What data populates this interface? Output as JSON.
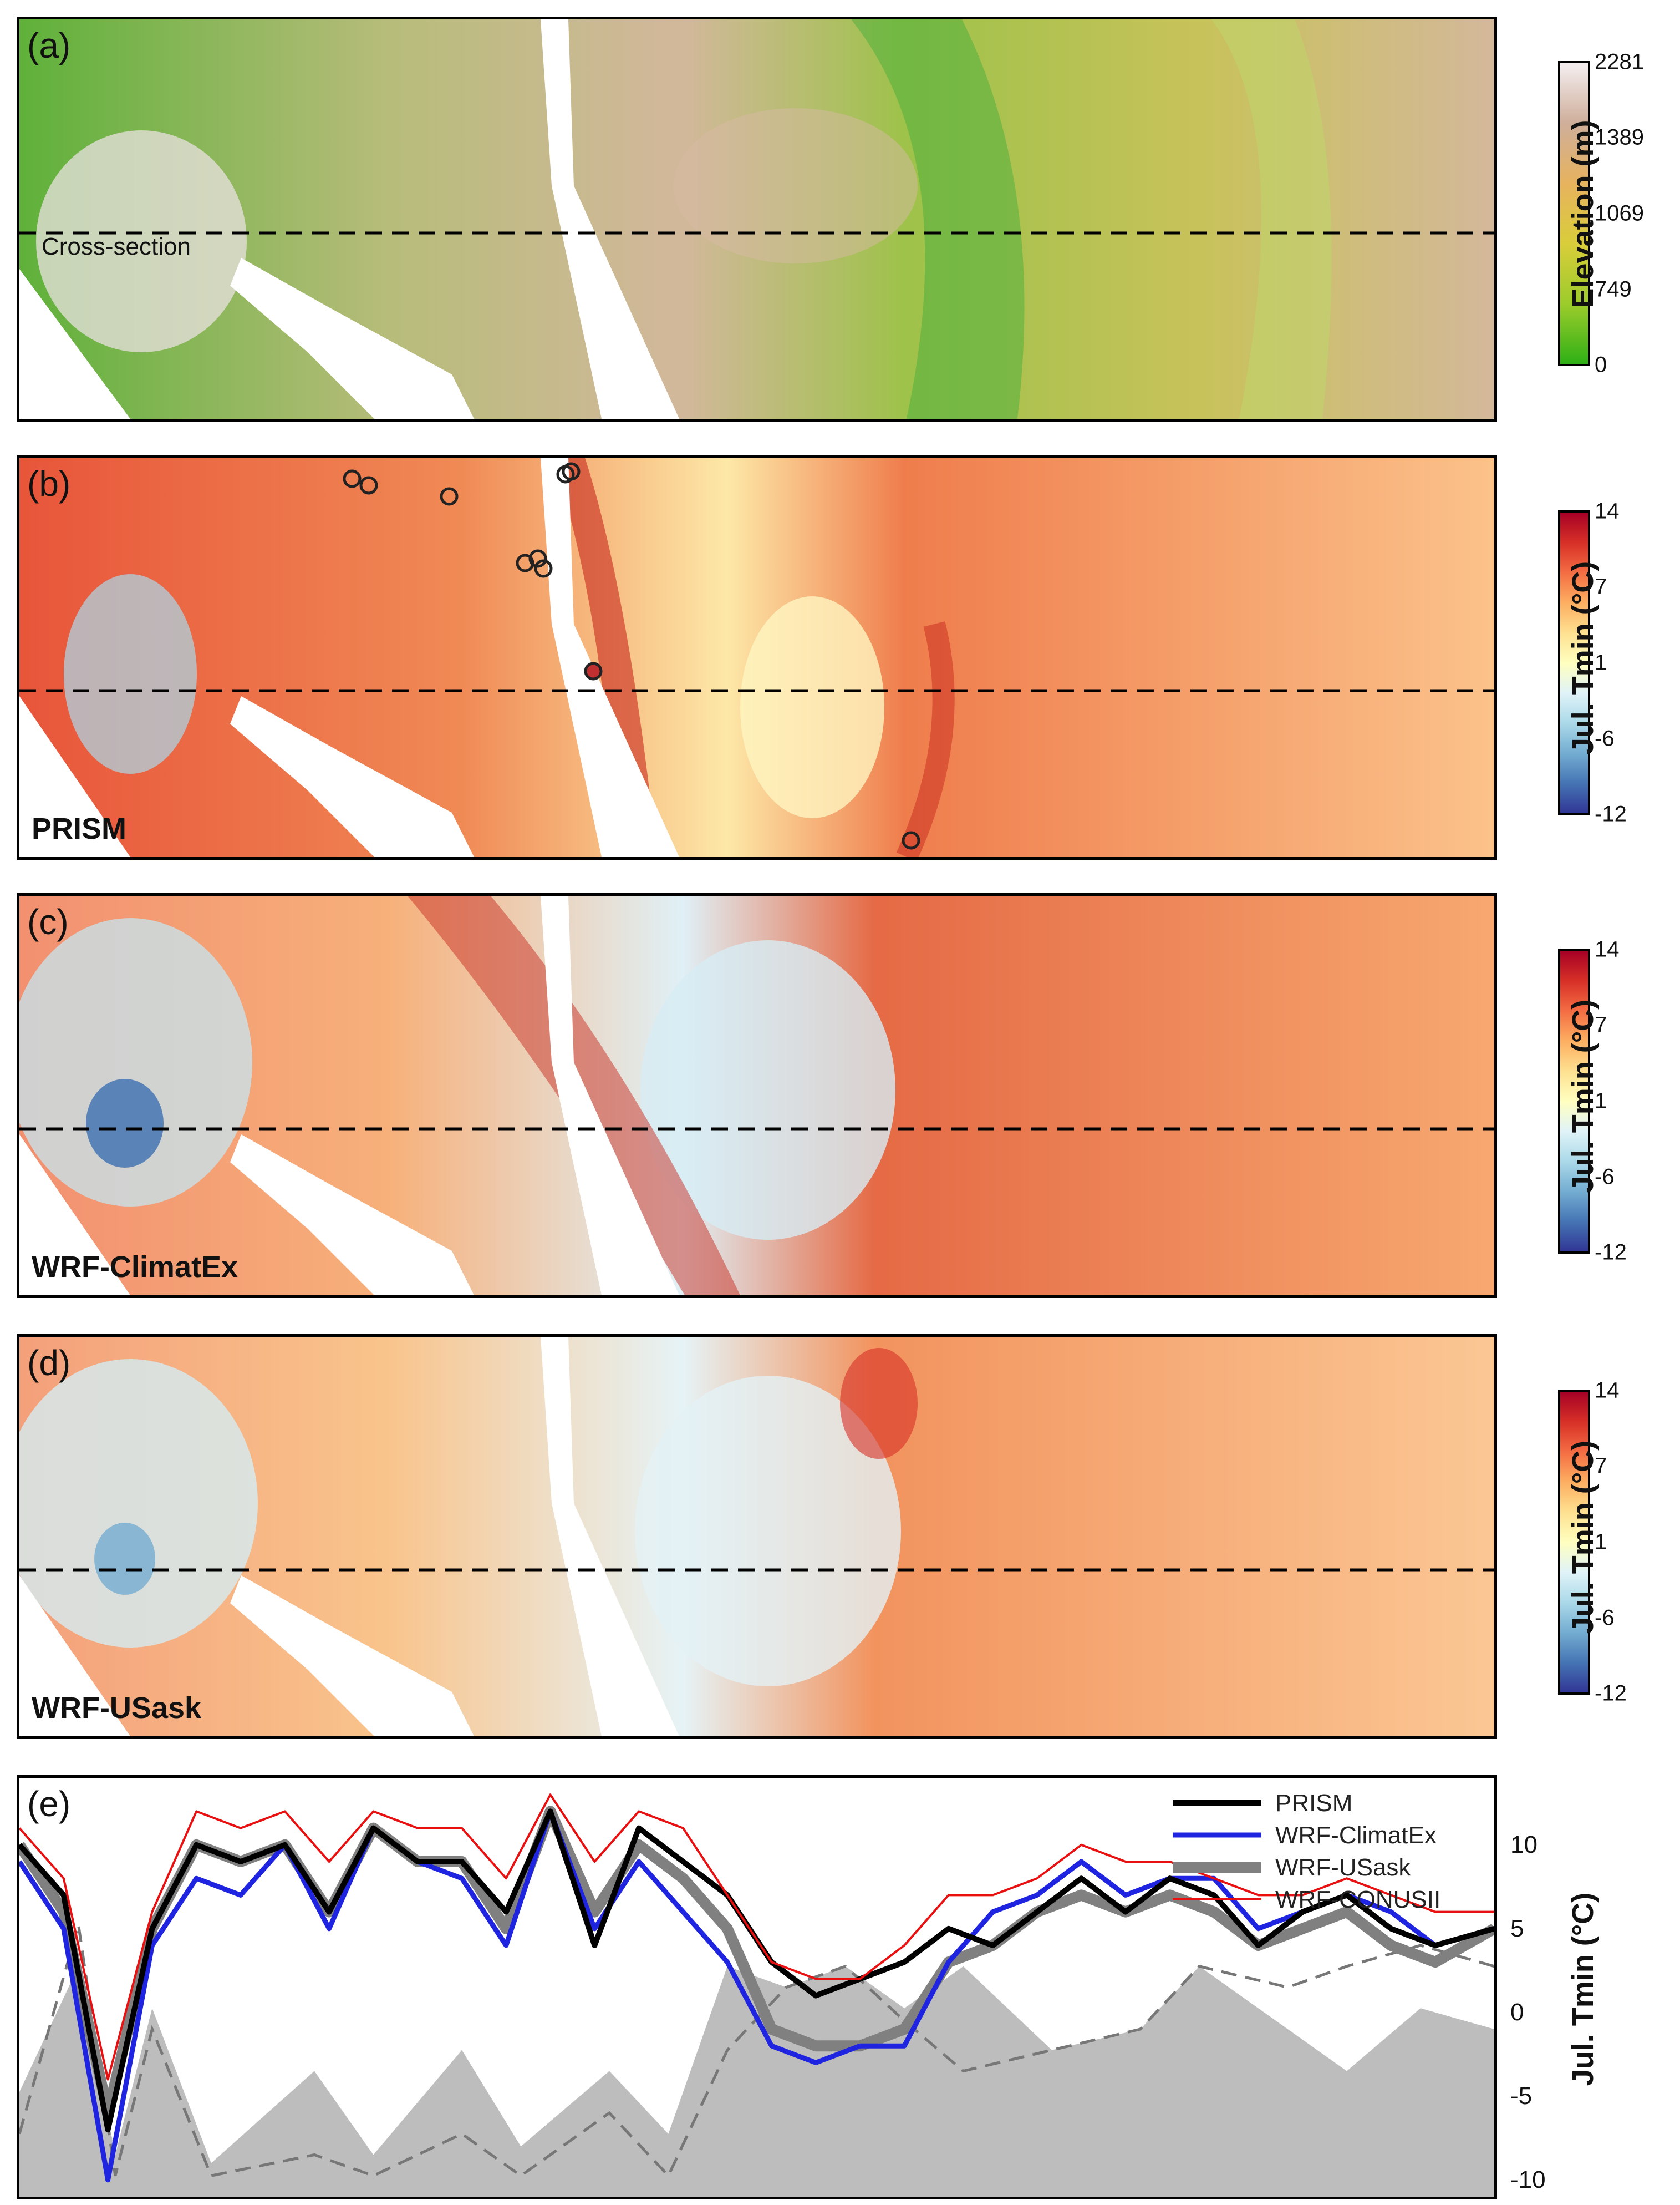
{
  "panel_a": {
    "label": "(a)",
    "cross_section_label": "Cross-section",
    "colorbar": {
      "title": "Elevation (m)",
      "ticks": [
        "2281",
        "1389",
        "1069",
        "749",
        "0"
      ],
      "colors": [
        "#f4eef0",
        "#cfae9a",
        "#e7b35e",
        "#d9cd3a",
        "#9ccc2b",
        "#2fb016"
      ]
    }
  },
  "panel_b": {
    "label": "(b)",
    "model": "PRISM",
    "colorbar": {
      "title": "Jul. Tmin (°C)",
      "ticks": [
        "14",
        "7",
        "1",
        "-6",
        "-12"
      ]
    }
  },
  "panel_c": {
    "label": "(c)",
    "model": "WRF-ClimatEx",
    "colorbar": {
      "title": "Jul. Tmin (°C)",
      "ticks": [
        "14",
        "7",
        "1",
        "-6",
        "-12"
      ]
    }
  },
  "panel_d": {
    "label": "(d)",
    "model": "WRF-USask",
    "colorbar": {
      "title": "Jul. Tmin (°C)",
      "ticks": [
        "14",
        "7",
        "1",
        "-6",
        "-12"
      ]
    }
  },
  "temp_colors": [
    "#a50026",
    "#d73027",
    "#f46d43",
    "#fdae61",
    "#fee090",
    "#ffffbf",
    "#e0f3f8",
    "#abd9e9",
    "#74add1",
    "#4575b4",
    "#313695"
  ],
  "chart_data": {
    "type": "line",
    "label": "(e)",
    "ylabel": "Jul. Tmin (°C)",
    "ylim": [
      -11,
      14
    ],
    "yticks": [
      10,
      5,
      0,
      -5,
      -10
    ],
    "x": [
      0,
      0.03,
      0.06,
      0.09,
      0.12,
      0.15,
      0.18,
      0.21,
      0.24,
      0.27,
      0.3,
      0.33,
      0.36,
      0.39,
      0.42,
      0.45,
      0.48,
      0.51,
      0.54,
      0.57,
      0.6,
      0.63,
      0.66,
      0.69,
      0.72,
      0.75,
      0.78,
      0.81,
      0.84,
      0.87,
      0.9,
      0.93,
      0.96,
      1.0
    ],
    "series": [
      {
        "name": "PRISM",
        "color": "#000000",
        "width": 10,
        "values": [
          10,
          7,
          -7,
          5,
          10,
          9,
          10,
          6,
          11,
          9,
          9,
          6,
          12,
          4,
          11,
          9,
          7,
          3,
          1,
          2,
          3,
          5,
          4,
          6,
          8,
          6,
          8,
          7,
          4,
          6,
          7,
          5,
          4,
          5
        ]
      },
      {
        "name": "WRF-ClimatEx",
        "color": "#1f24e0",
        "width": 9,
        "values": [
          9,
          5,
          -10,
          4,
          8,
          7,
          10,
          5,
          11,
          9,
          8,
          4,
          12,
          5,
          9,
          6,
          3,
          -2,
          -3,
          -2,
          -2,
          3,
          6,
          7,
          9,
          7,
          8,
          8,
          5,
          6,
          7,
          6,
          4,
          5
        ]
      },
      {
        "name": "WRF-USask",
        "color": "#808080",
        "width": 20,
        "values": [
          10,
          6,
          -6,
          5,
          10,
          9,
          10,
          6,
          11,
          9,
          9,
          5,
          12,
          6,
          10,
          8,
          5,
          -1,
          -2,
          -2,
          -1,
          3,
          4,
          6,
          7,
          6,
          7,
          6,
          4,
          5,
          6,
          4,
          3,
          5
        ]
      },
      {
        "name": "WRF-CONUSII",
        "color": "#e81010",
        "width": 4,
        "values": [
          11,
          8,
          -4,
          6,
          12,
          11,
          12,
          9,
          12,
          11,
          11,
          8,
          13,
          9,
          12,
          11,
          7,
          3,
          2,
          2,
          4,
          7,
          7,
          8,
          10,
          9,
          9,
          8,
          7,
          7,
          8,
          7,
          6,
          6
        ]
      }
    ],
    "legend_position": "top-right"
  }
}
